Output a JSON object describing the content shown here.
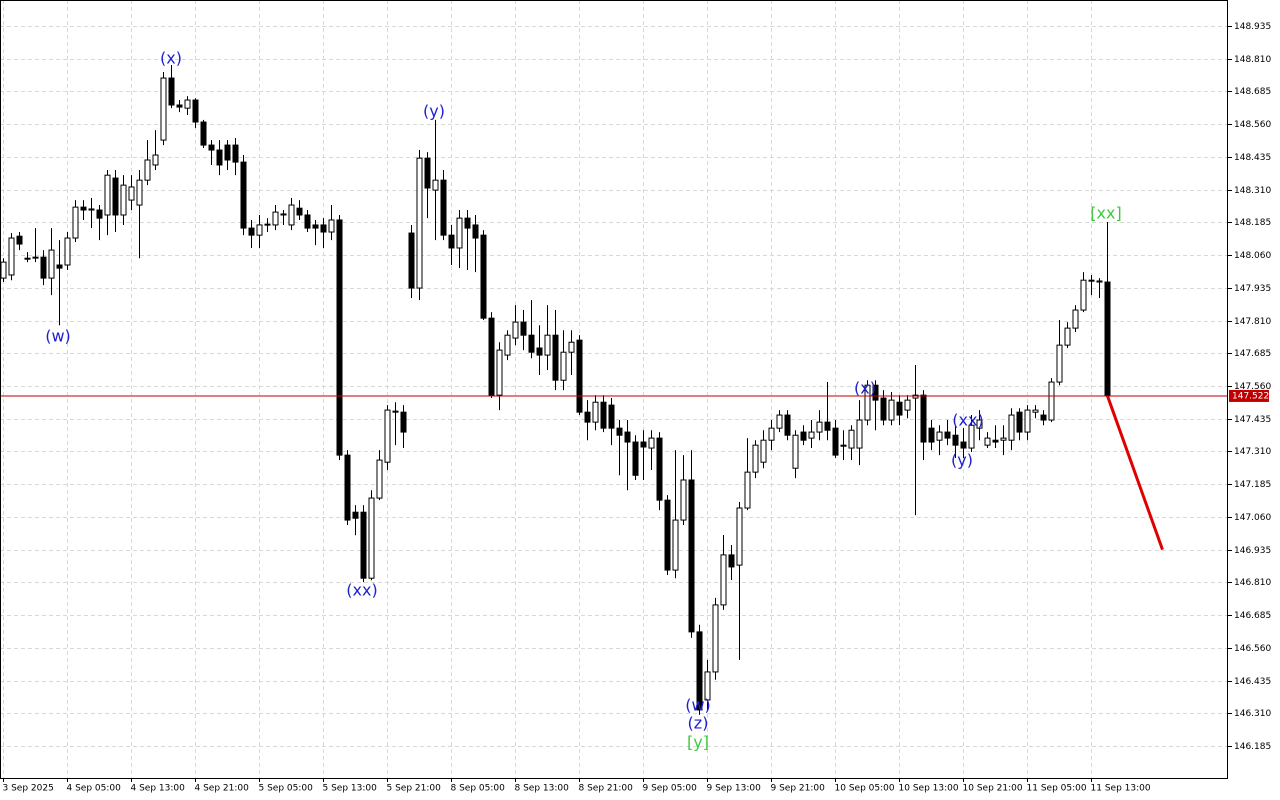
{
  "chart_data": {
    "type": "candlestick",
    "categories": [
      "3 Sep 2025",
      null,
      null,
      null,
      null,
      null,
      null,
      null,
      "4 Sep 05:00",
      null,
      null,
      null,
      null,
      null,
      null,
      null,
      "4 Sep 13:00",
      null,
      null,
      null,
      null,
      null,
      null,
      null,
      "4 Sep 21:00",
      null,
      null,
      null,
      null,
      null,
      null,
      null,
      "5 Sep 05:00",
      null,
      null,
      null,
      null,
      null,
      null,
      null,
      "5 Sep 13:00",
      null,
      null,
      null,
      null,
      null,
      null,
      null,
      "5 Sep 21:00",
      null,
      null,
      null,
      null,
      null,
      null,
      null,
      "8 Sep 05:00",
      null,
      null,
      null,
      null,
      null,
      null,
      null,
      "8 Sep 13:00",
      null,
      null,
      null,
      null,
      null,
      null,
      null,
      "8 Sep 21:00",
      null,
      null,
      null,
      null,
      null,
      null,
      null,
      "9 Sep 05:00",
      null,
      null,
      null,
      null,
      null,
      null,
      null,
      "9 Sep 13:00",
      null,
      null,
      null,
      null,
      null,
      null,
      null,
      "9 Sep 21:00",
      null,
      null,
      null,
      null,
      null,
      null,
      null,
      "10 Sep 05:00",
      null,
      null,
      null,
      null,
      null,
      null,
      null,
      "10 Sep 13:00",
      null,
      null,
      null,
      null,
      null,
      null,
      null,
      "10 Sep 21:00",
      null,
      null,
      null,
      null,
      null,
      null,
      null,
      "11 Sep 05:00",
      null,
      null,
      null,
      null,
      null,
      null,
      null,
      "11 Sep 13:00",
      null,
      null
    ],
    "open": [
      147.972,
      147.984,
      148.132,
      148.048,
      148.052,
      148.052,
      147.972,
      148.022,
      148.022,
      148.125,
      148.243,
      148.232,
      148.232,
      148.213,
      148.354,
      148.213,
      148.27,
      148.251,
      148.346,
      148.404,
      148.499,
      148.736,
      148.633,
      148.621,
      148.652,
      148.568,
      148.48,
      148.461,
      148.48,
      148.48,
      148.415,
      148.163,
      148.136,
      148.175,
      148.175,
      148.213,
      148.175,
      148.239,
      148.213,
      148.175,
      148.175,
      148.148,
      148.194,
      147.296,
      147.078,
      147.078,
      146.826,
      147.132,
      147.269,
      147.46,
      147.46,
      148.144,
      147.934,
      148.43,
      148.308,
      148.346,
      148.136,
      148.087,
      148.201,
      148.175,
      148.136,
      147.819,
      147.525,
      147.678,
      147.743,
      147.804,
      147.754,
      147.705,
      147.678,
      147.754,
      147.582,
      147.689,
      147.735,
      147.46,
      147.422,
      147.498,
      147.487,
      147.399,
      147.384,
      147.346,
      147.346,
      147.323,
      147.361,
      147.124,
      146.857,
      147.048,
      147.201,
      146.621,
      146.361,
      146.468,
      146.724,
      146.915,
      146.876,
      147.094,
      147.231,
      147.269,
      147.353,
      147.399,
      147.449,
      147.246,
      147.384,
      147.361,
      147.384,
      147.422,
      147.399,
      147.334,
      147.323,
      147.323,
      147.43,
      147.563,
      147.514,
      147.43,
      147.498,
      147.468,
      147.514,
      147.525,
      147.399,
      147.353,
      147.384,
      147.372,
      147.346,
      147.323,
      147.399,
      147.334,
      147.353,
      147.353,
      147.353,
      147.46,
      147.384,
      147.46,
      147.449,
      147.43,
      147.575,
      147.716,
      147.781,
      147.85,
      147.964,
      147.957,
      147.957
    ],
    "high": [
      148.048,
      148.144,
      148.148,
      148.071,
      148.163,
      148.079,
      148.163,
      148.117,
      148.148,
      148.27,
      148.27,
      148.278,
      148.251,
      148.385,
      148.385,
      148.365,
      148.365,
      148.385,
      148.499,
      148.537,
      148.759,
      148.786,
      148.652,
      148.667,
      148.659,
      148.576,
      148.499,
      148.499,
      148.499,
      148.507,
      148.442,
      148.194,
      148.213,
      148.201,
      148.251,
      148.232,
      148.278,
      148.27,
      148.232,
      148.194,
      148.201,
      148.251,
      148.213,
      147.315,
      147.105,
      147.105,
      147.162,
      147.315,
      147.487,
      147.498,
      147.487,
      148.175,
      148.461,
      148.453,
      148.576,
      148.385,
      148.175,
      148.232,
      148.232,
      148.213,
      148.155,
      147.842,
      147.727,
      147.773,
      147.869,
      147.85,
      147.888,
      147.792,
      147.869,
      147.85,
      147.773,
      147.773,
      147.754,
      147.506,
      147.525,
      147.525,
      147.514,
      147.43,
      147.43,
      147.372,
      147.391,
      147.391,
      147.384,
      147.143,
      147.315,
      147.296,
      147.315,
      146.648,
      146.514,
      146.751,
      146.991,
      146.953,
      147.117,
      147.361,
      147.353,
      147.391,
      147.43,
      147.468,
      147.468,
      147.391,
      147.41,
      147.43,
      147.468,
      147.575,
      147.43,
      147.391,
      147.41,
      147.506,
      147.582,
      147.582,
      147.544,
      147.537,
      147.525,
      147.525,
      147.64,
      147.544,
      147.43,
      147.41,
      147.43,
      147.41,
      147.399,
      147.449,
      147.468,
      147.384,
      147.41,
      147.41,
      147.475,
      147.475,
      147.487,
      147.487,
      147.468,
      147.59,
      147.812,
      147.804,
      147.869,
      147.995,
      147.984,
      147.972,
      148.186
    ],
    "low": [
      147.957,
      147.964,
      148.079,
      148.033,
      148.033,
      147.945,
      147.907,
      147.792,
      148.003,
      148.11,
      148.194,
      148.163,
      148.117,
      148.136,
      148.148,
      148.175,
      148.232,
      148.048,
      148.327,
      148.385,
      148.48,
      148.621,
      148.606,
      148.595,
      148.545,
      148.469,
      148.404,
      148.365,
      148.385,
      148.365,
      148.136,
      148.087,
      148.087,
      148.148,
      148.155,
      148.175,
      148.155,
      148.194,
      148.148,
      148.098,
      148.087,
      148.117,
      147.277,
      147.029,
      146.99,
      146.811,
      146.818,
      147.124,
      147.239,
      147.334,
      147.323,
      147.896,
      147.888,
      148.201,
      148.117,
      148.117,
      148.022,
      148.01,
      148.003,
      147.995,
      147.812,
      147.514,
      147.468,
      147.659,
      147.716,
      147.697,
      147.666,
      147.602,
      147.621,
      147.544,
      147.544,
      147.602,
      147.449,
      147.353,
      147.391,
      147.384,
      147.334,
      147.219,
      147.162,
      147.201,
      147.201,
      147.239,
      147.086,
      146.838,
      146.826,
      147.029,
      146.598,
      146.304,
      146.323,
      146.438,
      146.705,
      146.819,
      146.514,
      147.086,
      147.208,
      147.246,
      147.315,
      147.384,
      147.353,
      147.208,
      147.334,
      147.323,
      147.353,
      147.353,
      147.285,
      147.277,
      147.277,
      147.258,
      147.41,
      147.391,
      147.41,
      147.41,
      147.41,
      147.437,
      147.067,
      147.277,
      147.315,
      147.296,
      147.334,
      147.285,
      147.285,
      147.308,
      147.353,
      147.323,
      147.323,
      147.296,
      147.315,
      147.353,
      147.353,
      147.437,
      147.41,
      147.422,
      147.563,
      147.705,
      147.766,
      147.842,
      147.907,
      147.896,
      147.52
    ],
    "close": [
      148.033,
      148.125,
      148.102,
      148.045,
      148.05,
      147.972,
      148.079,
      148.01,
      148.125,
      148.243,
      148.232,
      148.236,
      148.201,
      148.365,
      148.213,
      148.327,
      148.32,
      148.346,
      148.423,
      148.442,
      148.736,
      148.633,
      148.625,
      148.652,
      148.568,
      148.48,
      148.461,
      148.404,
      148.423,
      148.415,
      148.163,
      148.136,
      148.175,
      148.178,
      148.224,
      148.217,
      148.251,
      148.213,
      148.163,
      148.163,
      148.148,
      148.194,
      147.296,
      147.048,
      147.055,
      146.826,
      147.132,
      147.277,
      147.468,
      147.464,
      147.384,
      147.934,
      148.43,
      148.316,
      148.346,
      148.136,
      148.087,
      148.201,
      148.163,
      148.125,
      147.819,
      147.525,
      147.697,
      147.754,
      147.804,
      147.754,
      147.689,
      147.678,
      147.754,
      147.582,
      147.689,
      147.727,
      147.46,
      147.422,
      147.498,
      147.399,
      147.399,
      147.372,
      147.346,
      147.219,
      147.327,
      147.361,
      147.124,
      146.857,
      147.048,
      147.201,
      146.621,
      146.323,
      146.468,
      146.724,
      146.915,
      146.869,
      147.094,
      147.231,
      147.334,
      147.353,
      147.399,
      147.449,
      147.372,
      147.372,
      147.353,
      147.384,
      147.422,
      147.391,
      147.296,
      147.33,
      147.391,
      147.43,
      147.563,
      147.506,
      147.43,
      147.506,
      147.449,
      147.506,
      147.525,
      147.346,
      147.346,
      147.384,
      147.361,
      147.334,
      147.323,
      147.41,
      147.43,
      147.361,
      147.346,
      147.361,
      147.449,
      147.384,
      147.468,
      147.468,
      147.43,
      147.575,
      147.716,
      147.781,
      147.85,
      147.964,
      147.961,
      147.961,
      147.522
    ],
    "up_color": "#ffffff",
    "down_color": "#000000",
    "ylim": [
      146.063,
      149.034
    ],
    "yticks": [
      146.185,
      {
        "value": 146.31,
        "label": "146.310"
      },
      146.435,
      {
        "value": 146.56,
        "label": "146.560"
      },
      146.685,
      {
        "value": 146.81,
        "label": "146.810"
      },
      146.935,
      {
        "value": 147.06,
        "label": "147.060"
      },
      147.185,
      {
        "value": 147.31,
        "label": "147.310"
      },
      147.435,
      {
        "value": 147.56,
        "label": "147.560"
      },
      147.685,
      {
        "value": 147.81,
        "label": "147.810"
      },
      147.935,
      {
        "value": 148.06,
        "label": "148.060"
      },
      148.185,
      {
        "value": 148.31,
        "label": "148.310"
      },
      148.435,
      {
        "value": 148.56,
        "label": "148.560"
      },
      148.685,
      {
        "value": 148.81,
        "label": "148.810"
      },
      148.935
    ],
    "grid": true,
    "price_line": {
      "value": 147.522,
      "color": "#c00000"
    },
    "forecast": {
      "color": "#e00000",
      "values": [
        146.935
      ]
    },
    "annotations": [
      {
        "text": "(w)",
        "color": "#2020d0"
      },
      {
        "text": "(x)",
        "color": "#2020d0"
      },
      {
        "text": "(y)",
        "color": "#2020d0"
      },
      {
        "text": "(xx)",
        "color": "#2020d0"
      },
      {
        "text": "(w)",
        "color": "#2020d0"
      },
      {
        "text": "(z)",
        "color": "#2020d0"
      },
      {
        "text": "[y]",
        "color": "#40c840"
      },
      {
        "text": "(x)",
        "color": "#2020d0"
      },
      {
        "text": "(xx)",
        "color": "#2020d0"
      },
      {
        "text": "(y)",
        "color": "#2020d0"
      },
      {
        "text": "[xx]",
        "color": "#40c840"
      }
    ]
  }
}
